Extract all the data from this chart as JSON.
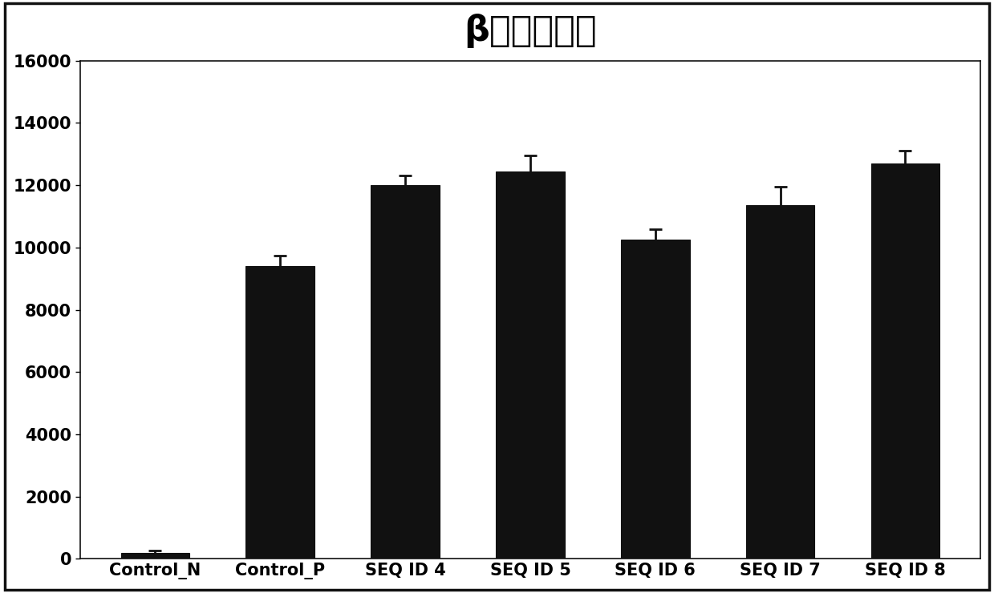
{
  "title": "β地中海贫血",
  "categories": [
    "Control_N",
    "Control_P",
    "SEQ ID 4",
    "SEQ ID 5",
    "SEQ ID 6",
    "SEQ ID 7",
    "SEQ ID 8"
  ],
  "values": [
    200,
    9400,
    12000,
    12450,
    10250,
    11350,
    12700
  ],
  "errors": [
    80,
    350,
    300,
    500,
    350,
    600,
    400
  ],
  "bar_color": "#111111",
  "background_color": "#ffffff",
  "ylim": [
    0,
    16000
  ],
  "yticks": [
    0,
    2000,
    4000,
    6000,
    8000,
    10000,
    12000,
    14000,
    16000
  ],
  "title_fontsize": 32,
  "tick_fontsize": 15,
  "xlabel_fontsize": 15,
  "bar_width": 0.55,
  "edge_color": "#111111"
}
